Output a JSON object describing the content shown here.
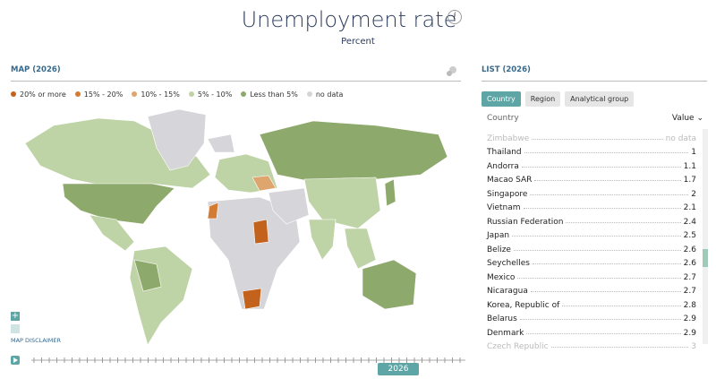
{
  "header": {
    "title": "Unemployment rate",
    "subtitle": "Percent"
  },
  "map": {
    "title": "MAP (2026)",
    "disclaimer": "MAP DISCLAIMER",
    "legend": [
      {
        "label": "20% or more",
        "color": "#c2621c"
      },
      {
        "label": "15% - 20%",
        "color": "#d47b33"
      },
      {
        "label": "10% - 15%",
        "color": "#dfa56e"
      },
      {
        "label": "5% - 10%",
        "color": "#bfd4a6"
      },
      {
        "label": "Less than 5%",
        "color": "#8ea96c"
      },
      {
        "label": "no data",
        "color": "#d6d6da"
      }
    ]
  },
  "timeline": {
    "year": "2026"
  },
  "list": {
    "title": "LIST (2026)",
    "tabs": [
      "Country",
      "Region",
      "Analytical group"
    ],
    "columns": [
      "Country",
      "Value"
    ],
    "rows": [
      [
        "Zimbabwe",
        "no data"
      ],
      [
        "Thailand",
        1
      ],
      [
        "Andorra",
        1.1
      ],
      [
        "Macao SAR",
        1.7
      ],
      [
        "Singapore",
        2
      ],
      [
        "Vietnam",
        2.1
      ],
      [
        "Russian Federation",
        2.4
      ],
      [
        "Japan",
        2.5
      ],
      [
        "Belize",
        2.6
      ],
      [
        "Seychelles",
        2.6
      ],
      [
        "Mexico",
        2.7
      ],
      [
        "Nicaragua",
        2.7
      ],
      [
        "Korea, Republic of",
        2.8
      ],
      [
        "Belarus",
        2.9
      ],
      [
        "Denmark",
        2.9
      ],
      [
        "Czech Republic",
        3
      ]
    ]
  }
}
